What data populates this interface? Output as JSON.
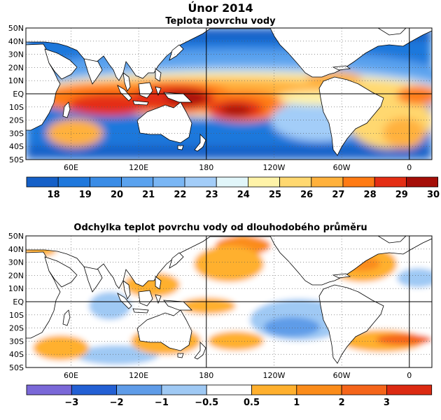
{
  "page": {
    "title": "Únor 2014"
  },
  "maps": [
    {
      "title": "Teplota povrchu vody",
      "lat_labels": [
        "50N",
        "40N",
        "30N",
        "20N",
        "10N",
        "EQ",
        "10S",
        "20S",
        "30S",
        "40S",
        "50S"
      ],
      "lon_labels": [
        "60E",
        "120E",
        "180",
        "120W",
        "60W",
        "0"
      ],
      "colorbar": {
        "colors": [
          "#1560c8",
          "#1f78dc",
          "#3a8ce6",
          "#5aa2ee",
          "#7ab6f4",
          "#a3cdf8",
          "#e1f6fa",
          "#fff3a8",
          "#ffd870",
          "#ffb13c",
          "#ff7b14",
          "#e42e14",
          "#a50e08"
        ],
        "labels": [
          "18",
          "19",
          "20",
          "21",
          "22",
          "23",
          "24",
          "25",
          "26",
          "27",
          "28",
          "29",
          "30"
        ]
      }
    },
    {
      "title": "Odchylka teplot povrchu vody od dlouhodobého průměru",
      "lat_labels": [
        "50N",
        "40N",
        "30N",
        "20N",
        "10N",
        "EQ",
        "10S",
        "20S",
        "30S",
        "40S",
        "50S"
      ],
      "lon_labels": [
        "60E",
        "120E",
        "180",
        "120W",
        "60W",
        "0"
      ],
      "colorbar": {
        "colors": [
          "#7a68d8",
          "#2360d4",
          "#5f9ce8",
          "#9fc9f4",
          "#ffffff",
          "#ffb02e",
          "#fb8c1a",
          "#f5651a",
          "#dc2a12"
        ],
        "labels": [
          "−3",
          "−2",
          "−1",
          "−0.5",
          "0.5",
          "1",
          "2",
          "3"
        ]
      }
    }
  ],
  "colors": {
    "land": "#ffffff",
    "coast": "#000000"
  }
}
